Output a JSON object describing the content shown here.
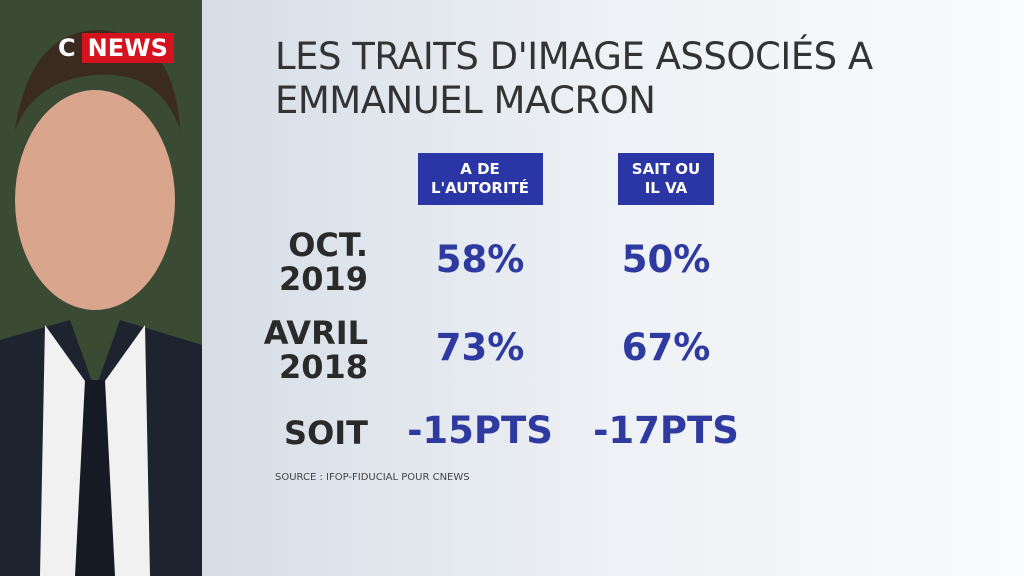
{
  "logo": {
    "letter": "C",
    "word": "NEWS"
  },
  "title": [
    "LES TRAITS D'IMAGE ASSOCIÉS A",
    "EMMANUEL MACRON"
  ],
  "table": {
    "columns": [
      [
        "A DE",
        "L'AUTORITÉ"
      ],
      [
        "SAIT OU",
        "IL VA"
      ]
    ],
    "rows": [
      {
        "label": [
          "OCT.",
          "2019"
        ],
        "cells": [
          "58%",
          "50%"
        ]
      },
      {
        "label": [
          "AVRIL",
          "2018"
        ],
        "cells": [
          "73%",
          "67%"
        ]
      },
      {
        "label": [
          "SOIT"
        ],
        "cells": [
          "-15PTS",
          "-17PTS"
        ]
      }
    ]
  },
  "source": "SOURCE : IFOP-FIDUCIAL POUR CNEWS"
}
